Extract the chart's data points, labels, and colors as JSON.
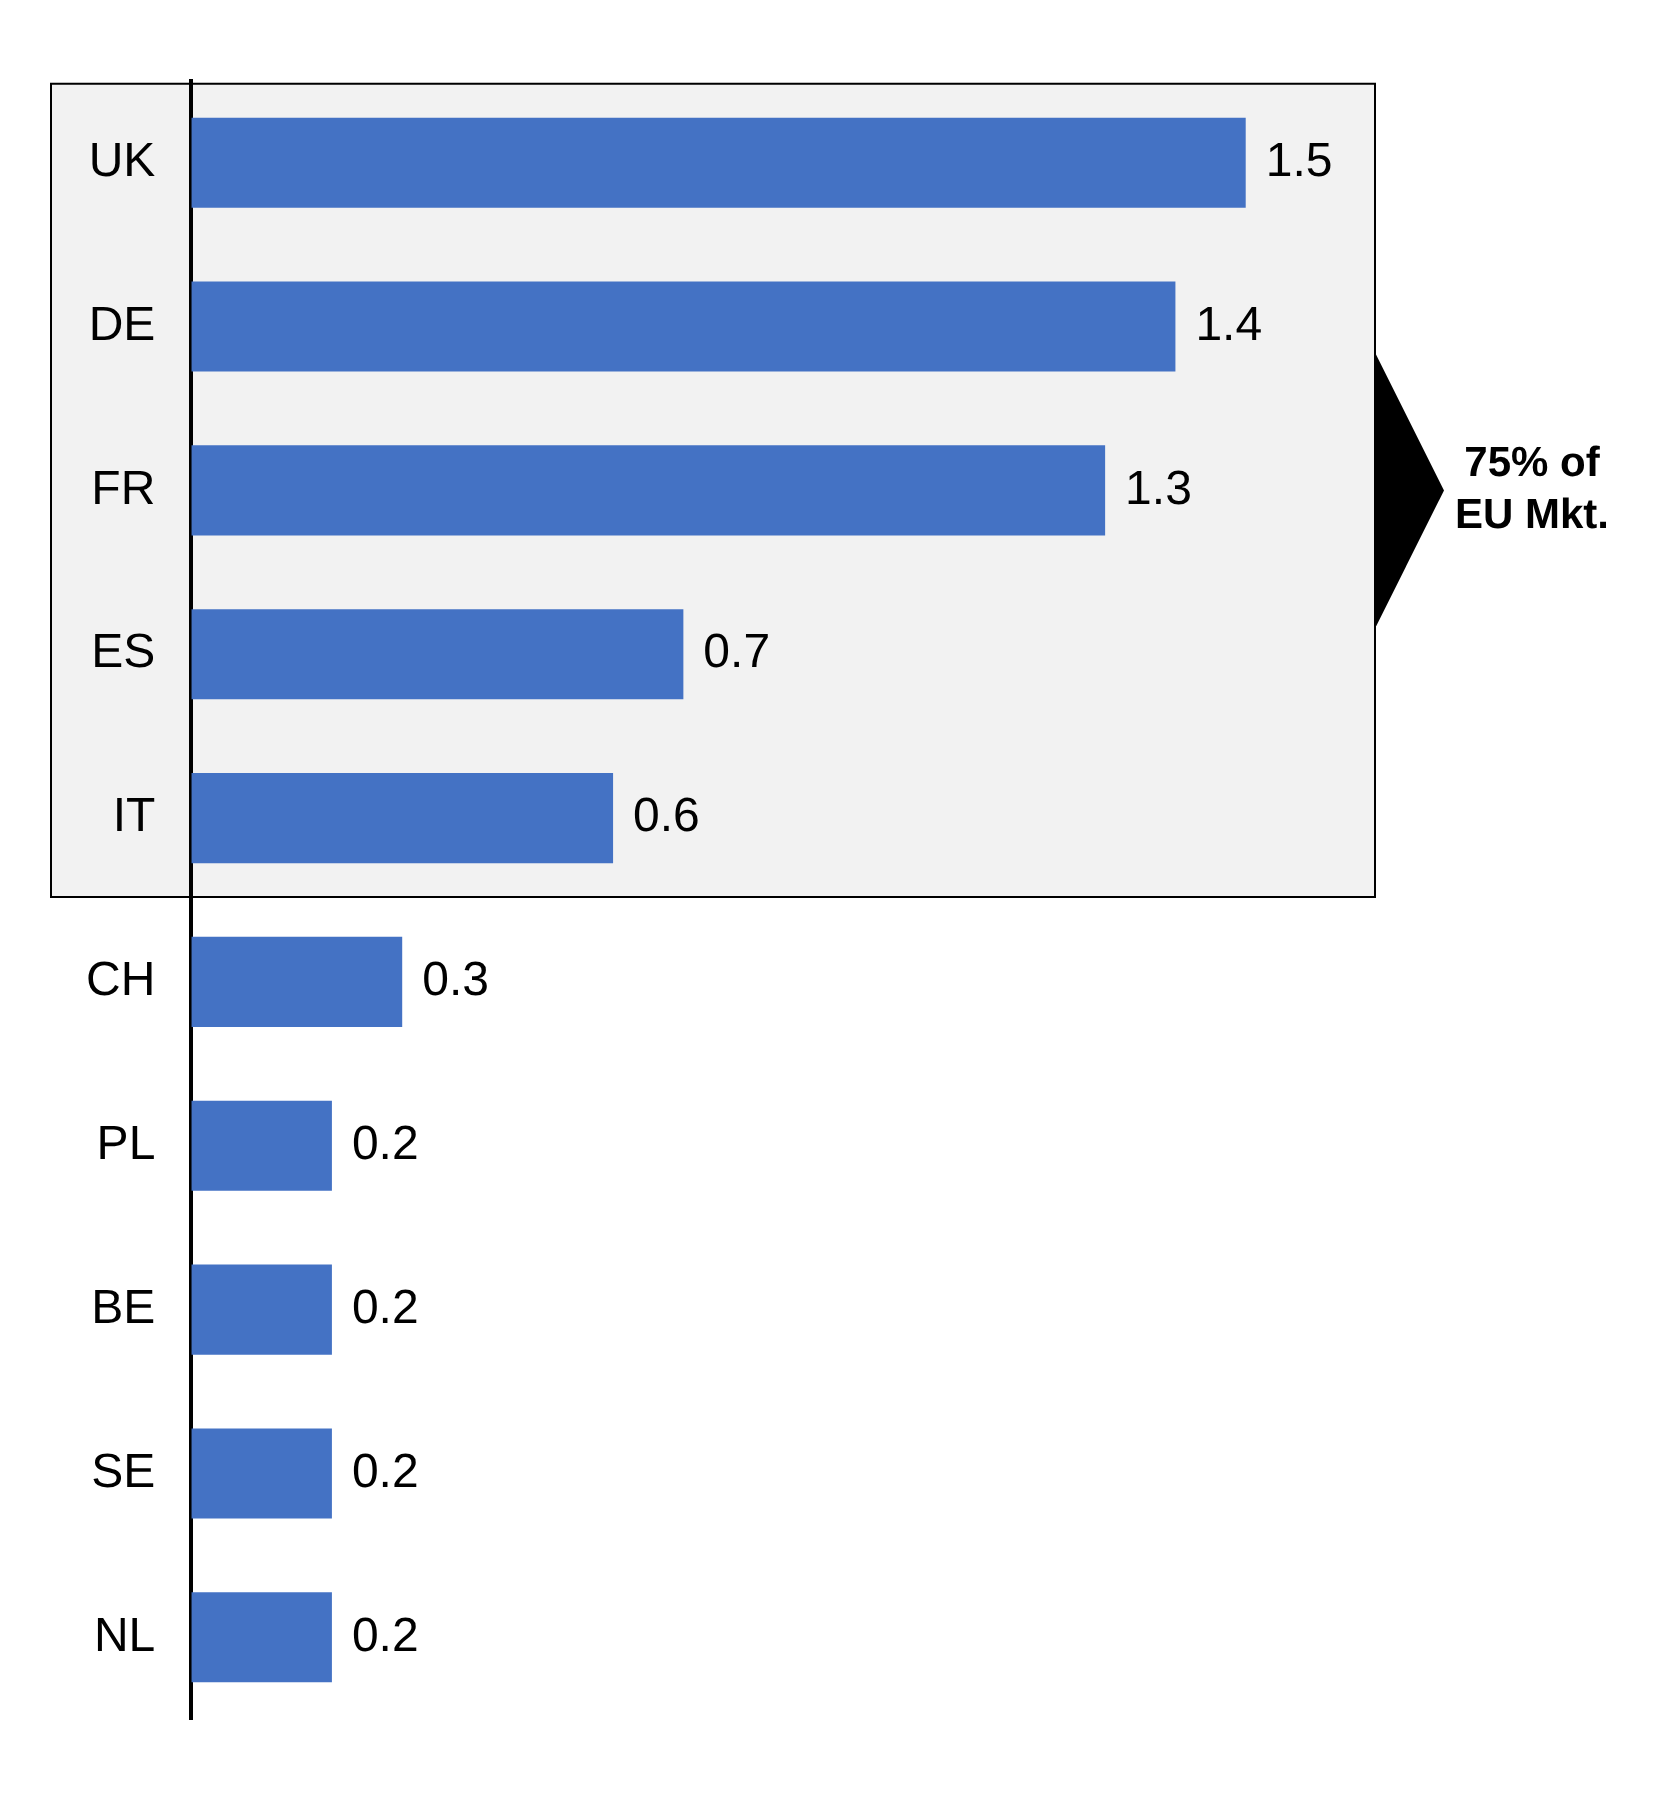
{
  "chart_data": {
    "type": "bar",
    "orientation": "horizontal",
    "categories": [
      "UK",
      "DE",
      "FR",
      "ES",
      "IT",
      "CH",
      "PL",
      "BE",
      "SE",
      "NL"
    ],
    "values": [
      1.5,
      1.4,
      1.3,
      0.7,
      0.6,
      0.3,
      0.2,
      0.2,
      0.2,
      0.2
    ],
    "color": "#4472c4",
    "data_labels": true,
    "grid": false,
    "legend": false,
    "tick_labels": "y",
    "bands": [
      {
        "axis": "y",
        "from": "UK",
        "to": "IT",
        "label": "75% of EU Mkt.",
        "color": "#f2f2f2"
      }
    ]
  }
}
